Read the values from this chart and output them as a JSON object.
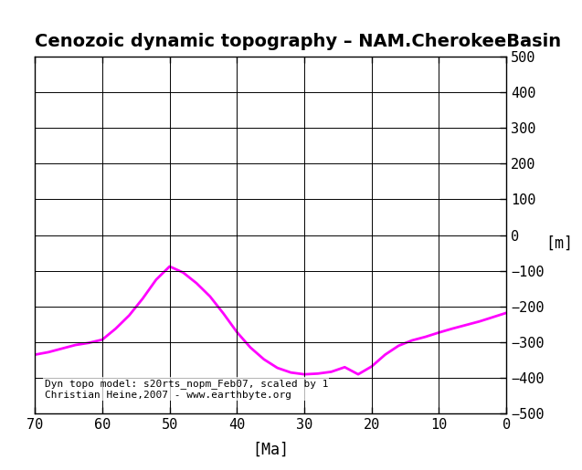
{
  "title": "Cenozoic dynamic topography – NAM.CherokeeBasin",
  "xlabel": "[Ma]",
  "ylabel": "[m]",
  "xlim": [
    70,
    0
  ],
  "ylim": [
    -500,
    500
  ],
  "xticks": [
    70,
    60,
    50,
    40,
    30,
    20,
    10,
    0
  ],
  "yticks": [
    -500,
    -400,
    -300,
    -200,
    -100,
    0,
    100,
    200,
    300,
    400,
    500
  ],
  "line_color": "#ff00ff",
  "line_width": 2.0,
  "annotation": "Dyn topo model: s20rts_nopm_Feb07, scaled by 1\nChristian Heine,2007 - www.earthbyte.org",
  "annotation_fontsize": 8,
  "title_fontsize": 14,
  "tick_fontsize": 11,
  "background_color": "#ffffff",
  "x_data": [
    70,
    68,
    66,
    64,
    62,
    60,
    58,
    56,
    54,
    52,
    50,
    48,
    46,
    44,
    42,
    40,
    38,
    36,
    34,
    32,
    30,
    28,
    26,
    24,
    22,
    20,
    18,
    16,
    14,
    12,
    10,
    8,
    6,
    4,
    2,
    0
  ],
  "y_data": [
    -335,
    -328,
    -318,
    -308,
    -302,
    -293,
    -262,
    -225,
    -178,
    -125,
    -88,
    -105,
    -135,
    -172,
    -220,
    -272,
    -315,
    -348,
    -372,
    -385,
    -390,
    -388,
    -383,
    -370,
    -390,
    -368,
    -335,
    -310,
    -295,
    -285,
    -273,
    -262,
    -252,
    -242,
    -230,
    -218
  ]
}
